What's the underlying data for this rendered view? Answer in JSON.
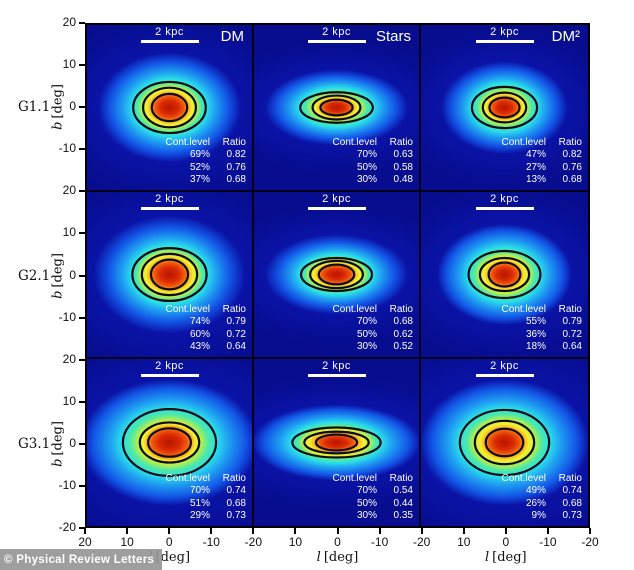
{
  "watermark": "© Physical Review Letters",
  "colors": {
    "panel_background": "#0a13a6",
    "contour_line": "#0c0c16",
    "panel_text": "#ffffff",
    "axis_text": "#111111",
    "scalebar": "#ffffff",
    "watermark_bg": "#969696"
  },
  "chart_data": {
    "type": "heatmap",
    "rows": [
      "G1.1",
      "G2.1",
      "G3.1"
    ],
    "columns": [
      "DM",
      "Stars",
      "DM²"
    ],
    "scalebar_label": "2 kpc",
    "legend_header": {
      "level": "Cont.level",
      "ratio": "Ratio"
    },
    "x_axis": {
      "label_var": "l",
      "label_unit": "[deg]",
      "range_deg": [
        20,
        -20
      ],
      "tick_labels": [
        "20",
        "10",
        "0",
        "-10",
        "-20",
        "10",
        "0",
        "-10",
        "-20",
        "10",
        "0",
        "-10",
        "-20"
      ]
    },
    "y_axis": {
      "label_var": "b",
      "label_unit": "[deg]",
      "range_deg": [
        -20,
        20
      ],
      "tick_labels": [
        "20",
        "10",
        "0",
        "-10",
        "20",
        "10",
        "0",
        "-10",
        "20",
        "10",
        "0",
        "-10",
        "-20"
      ]
    },
    "panels": [
      {
        "row": "G1.1",
        "col": "DM",
        "levels": [
          "69%",
          "52%",
          "37%"
        ],
        "ratios": [
          "0.82",
          "0.76",
          "0.68"
        ],
        "contours_deg": {
          "inner": [
            4.3,
            3.3
          ],
          "middle": [
            6.4,
            4.8
          ],
          "outer": [
            8.8,
            6.2
          ]
        },
        "glow_deg": [
          17,
          13
        ]
      },
      {
        "row": "G1.1",
        "col": "Stars",
        "levels": [
          "70%",
          "50%",
          "30%"
        ],
        "ratios": [
          "0.63",
          "0.58",
          "0.48"
        ],
        "contours_deg": {
          "inner": [
            3.9,
            1.9
          ],
          "middle": [
            5.8,
            2.9
          ],
          "outer": [
            8.8,
            3.7
          ]
        },
        "glow_deg": [
          17,
          9
        ]
      },
      {
        "row": "G1.1",
        "col": "DM²",
        "levels": [
          "47%",
          "27%",
          "13%"
        ],
        "ratios": [
          "0.82",
          "0.76",
          "0.68"
        ],
        "contours_deg": {
          "inner": [
            3.6,
            2.4
          ],
          "middle": [
            5.2,
            3.6
          ],
          "outer": [
            7.8,
            5.0
          ]
        },
        "glow_deg": [
          15,
          11
        ]
      },
      {
        "row": "G2.1",
        "col": "DM",
        "levels": [
          "74%",
          "60%",
          "43%"
        ],
        "ratios": [
          "0.79",
          "0.72",
          "0.64"
        ],
        "contours_deg": {
          "inner": [
            4.5,
            3.6
          ],
          "middle": [
            6.7,
            5.0
          ],
          "outer": [
            9.0,
            6.4
          ]
        },
        "glow_deg": [
          18,
          14
        ]
      },
      {
        "row": "G2.1",
        "col": "Stars",
        "levels": [
          "70%",
          "50%",
          "30%"
        ],
        "ratios": [
          "0.68",
          "0.62",
          "0.52"
        ],
        "contours_deg": {
          "inner": [
            4.3,
            2.4
          ],
          "middle": [
            6.4,
            3.3
          ],
          "outer": [
            8.6,
            4.0
          ]
        },
        "glow_deg": [
          17,
          9.5
        ]
      },
      {
        "row": "G2.1",
        "col": "DM²",
        "levels": [
          "55%",
          "36%",
          "18%"
        ],
        "ratios": [
          "0.79",
          "0.72",
          "0.64"
        ],
        "contours_deg": {
          "inner": [
            3.8,
            2.9
          ],
          "middle": [
            5.9,
            4.0
          ],
          "outer": [
            8.6,
            5.7
          ]
        },
        "glow_deg": [
          16,
          12
        ]
      },
      {
        "row": "G3.1",
        "col": "DM",
        "levels": [
          "70%",
          "51%",
          "29%"
        ],
        "ratios": [
          "0.74",
          "0.68",
          "0.73"
        ],
        "contours_deg": {
          "inner": [
            5.2,
            3.4
          ],
          "middle": [
            7.2,
            4.8
          ],
          "outer": [
            11.3,
            8.0
          ]
        },
        "glow_deg": [
          21,
          15
        ]
      },
      {
        "row": "G3.1",
        "col": "Stars",
        "levels": [
          "70%",
          "50%",
          "30%"
        ],
        "ratios": [
          "0.54",
          "0.44",
          "0.35"
        ],
        "contours_deg": {
          "inner": [
            5.0,
            1.9
          ],
          "middle": [
            7.8,
            2.6
          ],
          "outer": [
            10.7,
            3.6
          ]
        },
        "glow_deg": [
          20,
          9
        ]
      },
      {
        "row": "G3.1",
        "col": "DM²",
        "levels": [
          "49%",
          "26%",
          "9%"
        ],
        "ratios": [
          "0.74",
          "0.68",
          "0.73"
        ],
        "contours_deg": {
          "inner": [
            4.5,
            3.3
          ],
          "middle": [
            7.1,
            5.2
          ],
          "outer": [
            10.7,
            7.8
          ]
        },
        "glow_deg": [
          20,
          15
        ]
      }
    ]
  }
}
